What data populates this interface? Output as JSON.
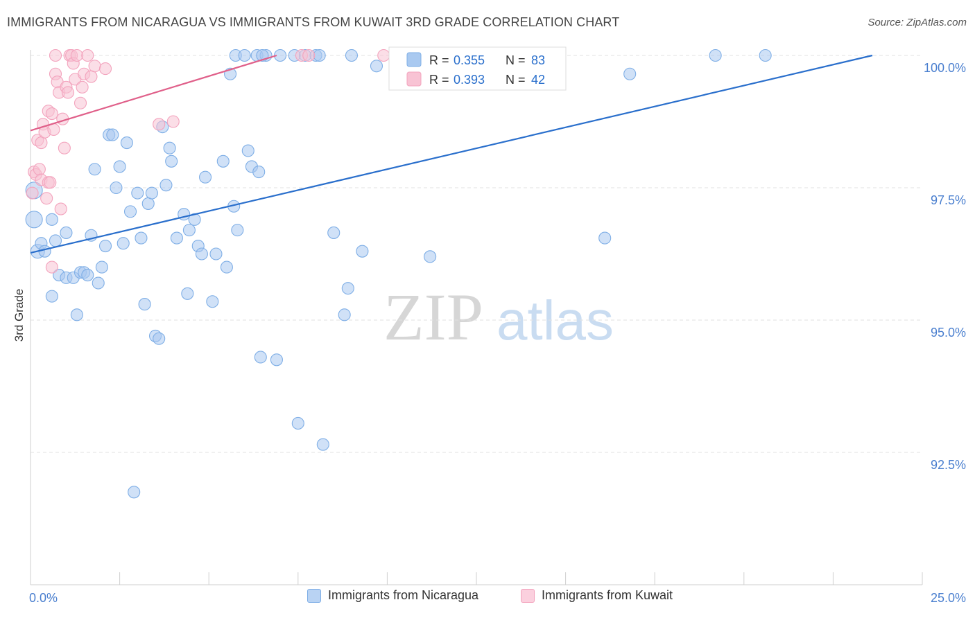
{
  "title": "IMMIGRANTS FROM NICARAGUA VS IMMIGRANTS FROM KUWAIT 3RD GRADE CORRELATION CHART",
  "source": "Source: ZipAtlas.com",
  "watermark": {
    "part1": "ZIP",
    "part2": "atlas"
  },
  "chart_data": {
    "type": "scatter",
    "ylabel": "3rd Grade",
    "xlim": [
      0,
      25
    ],
    "ylim": [
      90.2,
      100.35
    ],
    "x_tick_labels": [
      "0.0%",
      "25.0%"
    ],
    "y_ticks": [
      {
        "value": 100.0,
        "label": "100.0%"
      },
      {
        "value": 97.5,
        "label": "97.5%"
      },
      {
        "value": 95.0,
        "label": "95.0%"
      },
      {
        "value": 92.5,
        "label": "92.5%"
      }
    ],
    "grid": true,
    "legend_position": "top-center",
    "series": [
      {
        "name": "Immigrants from Nicaragua",
        "color": "#7eaee6",
        "fill": "#a9c9f0",
        "line_color": "#2a6fcc",
        "R": "0.355",
        "N": "83",
        "trend": {
          "x0": 0.0,
          "y0": 96.27,
          "x1": 23.6,
          "y1": 100.0
        },
        "points": [
          [
            0.1,
            96.9
          ],
          [
            0.1,
            97.45
          ],
          [
            0.2,
            96.3
          ],
          [
            0.3,
            96.45
          ],
          [
            0.4,
            96.3
          ],
          [
            0.6,
            96.9
          ],
          [
            0.6,
            95.45
          ],
          [
            0.7,
            96.5
          ],
          [
            0.8,
            95.85
          ],
          [
            1.0,
            96.65
          ],
          [
            1.0,
            95.8
          ],
          [
            1.2,
            95.8
          ],
          [
            1.3,
            95.1
          ],
          [
            1.4,
            95.9
          ],
          [
            1.5,
            95.9
          ],
          [
            1.6,
            95.85
          ],
          [
            1.7,
            96.6
          ],
          [
            1.8,
            97.85
          ],
          [
            1.9,
            95.7
          ],
          [
            2.0,
            96.0
          ],
          [
            2.1,
            96.4
          ],
          [
            2.2,
            98.5
          ],
          [
            2.3,
            98.5
          ],
          [
            2.4,
            97.5
          ],
          [
            2.5,
            97.9
          ],
          [
            2.6,
            96.45
          ],
          [
            2.7,
            98.35
          ],
          [
            2.8,
            97.05
          ],
          [
            2.9,
            91.75
          ],
          [
            3.0,
            97.4
          ],
          [
            3.1,
            96.55
          ],
          [
            3.2,
            95.3
          ],
          [
            3.3,
            97.2
          ],
          [
            3.4,
            97.4
          ],
          [
            3.5,
            94.7
          ],
          [
            3.6,
            94.65
          ],
          [
            3.7,
            98.65
          ],
          [
            3.8,
            97.55
          ],
          [
            3.9,
            98.25
          ],
          [
            3.95,
            98.0
          ],
          [
            4.1,
            96.55
          ],
          [
            4.3,
            97.0
          ],
          [
            4.4,
            95.5
          ],
          [
            4.45,
            96.7
          ],
          [
            4.6,
            96.9
          ],
          [
            4.7,
            96.4
          ],
          [
            4.8,
            96.25
          ],
          [
            4.9,
            97.7
          ],
          [
            5.1,
            95.35
          ],
          [
            5.2,
            96.25
          ],
          [
            5.4,
            98.0
          ],
          [
            5.5,
            96.0
          ],
          [
            5.6,
            99.65
          ],
          [
            5.7,
            97.15
          ],
          [
            5.75,
            100.0
          ],
          [
            5.8,
            96.7
          ],
          [
            6.0,
            100.0
          ],
          [
            6.1,
            98.2
          ],
          [
            6.2,
            97.9
          ],
          [
            6.35,
            100.0
          ],
          [
            6.4,
            97.8
          ],
          [
            6.45,
            94.3
          ],
          [
            6.6,
            100.0
          ],
          [
            6.9,
            94.25
          ],
          [
            7.0,
            100.0
          ],
          [
            7.4,
            100.0
          ],
          [
            7.5,
            93.05
          ],
          [
            7.7,
            100.0
          ],
          [
            8.0,
            100.0
          ],
          [
            8.1,
            100.0
          ],
          [
            8.2,
            92.65
          ],
          [
            8.5,
            96.65
          ],
          [
            8.8,
            95.1
          ],
          [
            8.9,
            95.6
          ],
          [
            9.3,
            96.3
          ],
          [
            9.7,
            99.8
          ],
          [
            11.2,
            96.2
          ],
          [
            16.1,
            96.55
          ],
          [
            16.8,
            99.65
          ],
          [
            19.2,
            100.0
          ],
          [
            20.6,
            100.0
          ],
          [
            9.0,
            100.0
          ],
          [
            6.5,
            100.0
          ]
        ],
        "point_size": [
          3,
          3,
          2,
          1,
          1,
          1,
          1,
          1,
          1,
          1,
          1,
          1,
          1,
          1,
          1,
          1,
          1,
          1,
          1,
          1,
          1,
          1,
          1,
          1,
          1,
          1,
          1,
          1,
          1,
          1,
          1,
          1,
          1,
          1,
          1,
          1,
          1,
          1,
          1,
          1,
          1,
          1,
          1,
          1,
          1,
          1,
          1,
          1,
          1,
          1,
          1,
          1,
          1,
          1,
          1,
          1,
          1,
          1,
          1,
          1,
          1,
          1,
          1,
          1,
          1,
          1,
          1,
          1,
          1,
          1,
          1,
          1,
          1,
          1,
          1,
          1,
          1,
          1,
          1,
          1,
          1,
          1,
          1
        ]
      },
      {
        "name": "Immigrants from Kuwait",
        "color": "#f3a3bd",
        "fill": "#f8c3d4",
        "line_color": "#e0608a",
        "R": "0.393",
        "N": "42",
        "trend": {
          "x0": 0.0,
          "y0": 98.58,
          "x1": 6.9,
          "y1": 100.0
        },
        "points": [
          [
            0.05,
            97.4
          ],
          [
            0.1,
            97.8
          ],
          [
            0.15,
            97.75
          ],
          [
            0.2,
            98.4
          ],
          [
            0.25,
            97.85
          ],
          [
            0.3,
            98.35
          ],
          [
            0.3,
            97.65
          ],
          [
            0.35,
            98.7
          ],
          [
            0.4,
            98.55
          ],
          [
            0.45,
            97.3
          ],
          [
            0.5,
            97.6
          ],
          [
            0.5,
            98.95
          ],
          [
            0.55,
            97.6
          ],
          [
            0.6,
            96.0
          ],
          [
            0.6,
            98.9
          ],
          [
            0.65,
            98.6
          ],
          [
            0.7,
            100.0
          ],
          [
            0.7,
            99.65
          ],
          [
            0.75,
            99.5
          ],
          [
            0.8,
            99.3
          ],
          [
            0.85,
            97.1
          ],
          [
            0.9,
            98.8
          ],
          [
            0.95,
            98.25
          ],
          [
            1.0,
            99.4
          ],
          [
            1.05,
            99.3
          ],
          [
            1.1,
            100.0
          ],
          [
            1.15,
            100.0
          ],
          [
            1.2,
            99.85
          ],
          [
            1.25,
            99.55
          ],
          [
            1.3,
            100.0
          ],
          [
            1.4,
            99.1
          ],
          [
            1.45,
            99.4
          ],
          [
            1.5,
            99.65
          ],
          [
            1.6,
            100.0
          ],
          [
            1.7,
            99.6
          ],
          [
            1.8,
            99.8
          ],
          [
            2.1,
            99.75
          ],
          [
            3.6,
            98.7
          ],
          [
            4.0,
            98.75
          ],
          [
            7.6,
            100.0
          ],
          [
            7.8,
            100.0
          ],
          [
            9.9,
            100.0
          ]
        ]
      }
    ]
  }
}
